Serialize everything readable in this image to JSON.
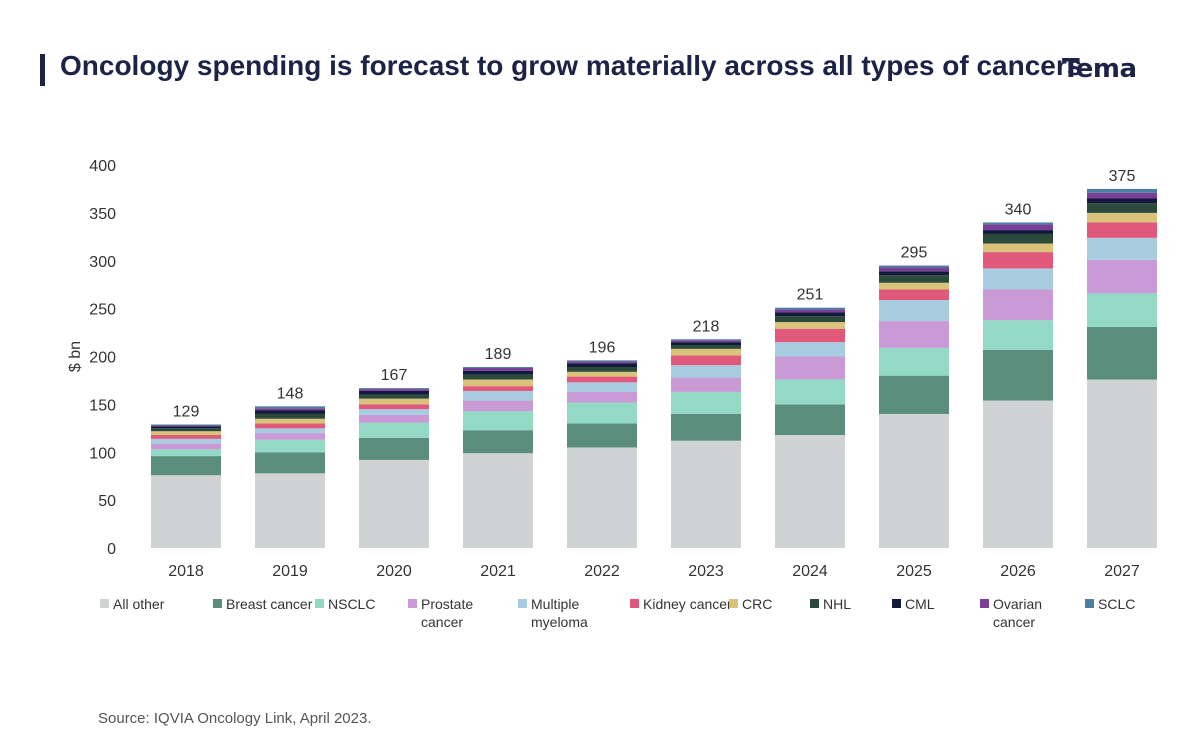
{
  "header": {
    "title": "Oncology spending is forecast to grow materially across all types of cancers",
    "logo_text": "Tema"
  },
  "source": "Source: IQVIA Oncology Link, April 2023.",
  "chart_data": {
    "type": "bar",
    "stacked": true,
    "title": "",
    "xlabel": "",
    "ylabel": "$ bn",
    "ylim": [
      0,
      400
    ],
    "yticks": [
      0,
      50,
      100,
      150,
      200,
      250,
      300,
      350,
      400
    ],
    "grid": false,
    "legend_position": "bottom",
    "categories": [
      "2018",
      "2019",
      "2020",
      "2021",
      "2022",
      "2023",
      "2024",
      "2025",
      "2026",
      "2027"
    ],
    "totals": [
      129,
      148,
      167,
      189,
      196,
      218,
      251,
      295,
      340,
      375
    ],
    "series": [
      {
        "name": "All other",
        "color": "#d0d3d4",
        "values": [
          76,
          78,
          92,
          99,
          105,
          112,
          118,
          140,
          154,
          176
        ]
      },
      {
        "name": "Breast cancer",
        "color": "#5a8d7b",
        "values": [
          20,
          22,
          23,
          24,
          25,
          28,
          32,
          40,
          53,
          55
        ]
      },
      {
        "name": "NSCLC",
        "color": "#93d9c5",
        "values": [
          7,
          13,
          16,
          20,
          22,
          23,
          26,
          29,
          31,
          35
        ]
      },
      {
        "name": "Prostate cancer",
        "color": "#c99ad6",
        "values": [
          6,
          7,
          8,
          11,
          11,
          15,
          24,
          28,
          32,
          35
        ]
      },
      {
        "name": "Multiple myeloma",
        "color": "#a8cce0",
        "values": [
          5,
          5,
          6,
          10,
          10,
          13,
          15,
          22,
          22,
          23
        ]
      },
      {
        "name": "Kidney cancer",
        "color": "#e0587a",
        "values": [
          4,
          5,
          5,
          5,
          6,
          10,
          14,
          11,
          17,
          16
        ]
      },
      {
        "name": "CRC",
        "color": "#d9c27a",
        "values": [
          4,
          5,
          6,
          7,
          5,
          7,
          7,
          7,
          9,
          10
        ]
      },
      {
        "name": "NHL",
        "color": "#2c4a3c",
        "values": [
          3,
          5,
          4,
          5,
          5,
          4,
          6,
          8,
          10,
          10
        ]
      },
      {
        "name": "CML",
        "color": "#111a3a",
        "values": [
          2,
          4,
          4,
          4,
          4,
          3,
          4,
          4,
          4,
          5
        ]
      },
      {
        "name": "Ovarian cancer",
        "color": "#7a3f96",
        "values": [
          1,
          2,
          2,
          3,
          2,
          2,
          3,
          4,
          6,
          6
        ]
      },
      {
        "name": "SCLC",
        "color": "#4d7fa3",
        "values": [
          1,
          2,
          1,
          1,
          1,
          1,
          2,
          2,
          2,
          4
        ]
      }
    ]
  }
}
